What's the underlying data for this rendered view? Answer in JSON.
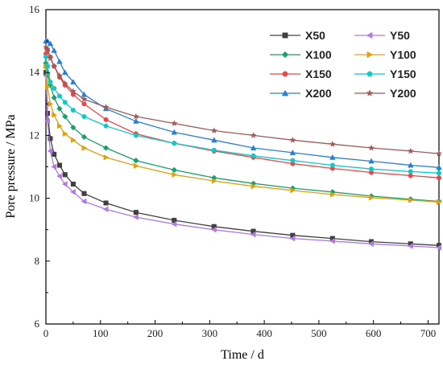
{
  "chart_data": {
    "type": "line",
    "title": "",
    "xlabel": "Time / d",
    "ylabel": "Pore pressure / MPa",
    "xlim": [
      0,
      720
    ],
    "ylim": [
      6,
      16
    ],
    "xticks": [
      0,
      100,
      200,
      300,
      400,
      500,
      600,
      700
    ],
    "yticks": [
      6,
      8,
      10,
      12,
      14,
      16
    ],
    "grid": false,
    "legend_position": "top-right",
    "series": [
      {
        "name": "X50",
        "color": "#404040",
        "marker": "square",
        "points": [
          [
            0,
            14.0
          ],
          [
            3,
            12.7
          ],
          [
            8,
            11.9
          ],
          [
            15,
            11.4
          ],
          [
            25,
            11.05
          ],
          [
            35,
            10.75
          ],
          [
            50,
            10.45
          ],
          [
            70,
            10.15
          ],
          [
            110,
            9.85
          ],
          [
            165,
            9.55
          ],
          [
            235,
            9.3
          ],
          [
            308,
            9.1
          ],
          [
            380,
            8.95
          ],
          [
            452,
            8.82
          ],
          [
            525,
            8.72
          ],
          [
            596,
            8.62
          ],
          [
            668,
            8.55
          ],
          [
            720,
            8.5
          ]
        ]
      },
      {
        "name": "Y50",
        "color": "#b07ae0",
        "marker": "triangle-left",
        "points": [
          [
            0,
            13.9
          ],
          [
            3,
            12.45
          ],
          [
            8,
            11.5
          ],
          [
            15,
            11.0
          ],
          [
            25,
            10.7
          ],
          [
            35,
            10.45
          ],
          [
            50,
            10.2
          ],
          [
            70,
            9.9
          ],
          [
            110,
            9.65
          ],
          [
            165,
            9.4
          ],
          [
            235,
            9.18
          ],
          [
            308,
            9.0
          ],
          [
            380,
            8.85
          ],
          [
            452,
            8.72
          ],
          [
            525,
            8.64
          ],
          [
            596,
            8.55
          ],
          [
            668,
            8.48
          ],
          [
            720,
            8.43
          ]
        ]
      },
      {
        "name": "X100",
        "color": "#1aa06a",
        "marker": "diamond",
        "points": [
          [
            0,
            14.3
          ],
          [
            3,
            13.95
          ],
          [
            8,
            13.6
          ],
          [
            15,
            13.2
          ],
          [
            25,
            12.85
          ],
          [
            35,
            12.6
          ],
          [
            50,
            12.25
          ],
          [
            70,
            11.95
          ],
          [
            110,
            11.6
          ],
          [
            165,
            11.2
          ],
          [
            235,
            10.9
          ],
          [
            308,
            10.65
          ],
          [
            380,
            10.47
          ],
          [
            452,
            10.32
          ],
          [
            525,
            10.2
          ],
          [
            596,
            10.07
          ],
          [
            668,
            9.97
          ],
          [
            720,
            9.9
          ]
        ]
      },
      {
        "name": "Y100",
        "color": "#e0a010",
        "marker": "triangle-right",
        "points": [
          [
            0,
            14.2
          ],
          [
            3,
            13.55
          ],
          [
            8,
            13.0
          ],
          [
            15,
            12.65
          ],
          [
            25,
            12.3
          ],
          [
            35,
            12.05
          ],
          [
            50,
            11.85
          ],
          [
            70,
            11.6
          ],
          [
            110,
            11.3
          ],
          [
            165,
            11.03
          ],
          [
            235,
            10.75
          ],
          [
            308,
            10.55
          ],
          [
            380,
            10.38
          ],
          [
            452,
            10.25
          ],
          [
            525,
            10.12
          ],
          [
            596,
            10.02
          ],
          [
            668,
            9.94
          ],
          [
            720,
            9.88
          ]
        ]
      },
      {
        "name": "X150",
        "color": "#e84848",
        "marker": "circle",
        "points": [
          [
            0,
            14.6
          ],
          [
            3,
            14.7
          ],
          [
            8,
            14.5
          ],
          [
            15,
            14.2
          ],
          [
            25,
            13.85
          ],
          [
            35,
            13.6
          ],
          [
            50,
            13.3
          ],
          [
            70,
            13.0
          ],
          [
            110,
            12.5
          ],
          [
            165,
            12.05
          ],
          [
            235,
            11.75
          ],
          [
            308,
            11.5
          ],
          [
            380,
            11.3
          ],
          [
            452,
            11.1
          ],
          [
            525,
            10.95
          ],
          [
            596,
            10.82
          ],
          [
            668,
            10.72
          ],
          [
            720,
            10.65
          ]
        ]
      },
      {
        "name": "Y150",
        "color": "#10c8c8",
        "marker": "circle",
        "points": [
          [
            0,
            14.5
          ],
          [
            3,
            14.2
          ],
          [
            8,
            13.7
          ],
          [
            15,
            13.5
          ],
          [
            25,
            13.25
          ],
          [
            35,
            13.05
          ],
          [
            50,
            12.8
          ],
          [
            70,
            12.6
          ],
          [
            110,
            12.3
          ],
          [
            165,
            12.0
          ],
          [
            235,
            11.75
          ],
          [
            308,
            11.53
          ],
          [
            380,
            11.35
          ],
          [
            452,
            11.2
          ],
          [
            525,
            11.05
          ],
          [
            596,
            10.93
          ],
          [
            668,
            10.85
          ],
          [
            720,
            10.8
          ]
        ]
      },
      {
        "name": "X200",
        "color": "#2a7fd4",
        "marker": "triangle-up",
        "points": [
          [
            0,
            15.0
          ],
          [
            3,
            15.0
          ],
          [
            8,
            14.92
          ],
          [
            15,
            14.7
          ],
          [
            25,
            14.35
          ],
          [
            35,
            14.0
          ],
          [
            50,
            13.7
          ],
          [
            70,
            13.3
          ],
          [
            110,
            12.85
          ],
          [
            165,
            12.45
          ],
          [
            235,
            12.1
          ],
          [
            308,
            11.85
          ],
          [
            380,
            11.6
          ],
          [
            452,
            11.45
          ],
          [
            525,
            11.3
          ],
          [
            596,
            11.18
          ],
          [
            668,
            11.05
          ],
          [
            720,
            10.98
          ]
        ]
      },
      {
        "name": "Y200",
        "color": "#a05a5a",
        "marker": "star",
        "points": [
          [
            0,
            14.8
          ],
          [
            3,
            14.75
          ],
          [
            8,
            14.45
          ],
          [
            15,
            14.2
          ],
          [
            25,
            13.9
          ],
          [
            35,
            13.65
          ],
          [
            50,
            13.4
          ],
          [
            70,
            13.15
          ],
          [
            110,
            12.9
          ],
          [
            165,
            12.6
          ],
          [
            235,
            12.38
          ],
          [
            308,
            12.15
          ],
          [
            380,
            12.0
          ],
          [
            452,
            11.85
          ],
          [
            525,
            11.72
          ],
          [
            596,
            11.6
          ],
          [
            668,
            11.5
          ],
          [
            720,
            11.42
          ]
        ]
      }
    ]
  }
}
